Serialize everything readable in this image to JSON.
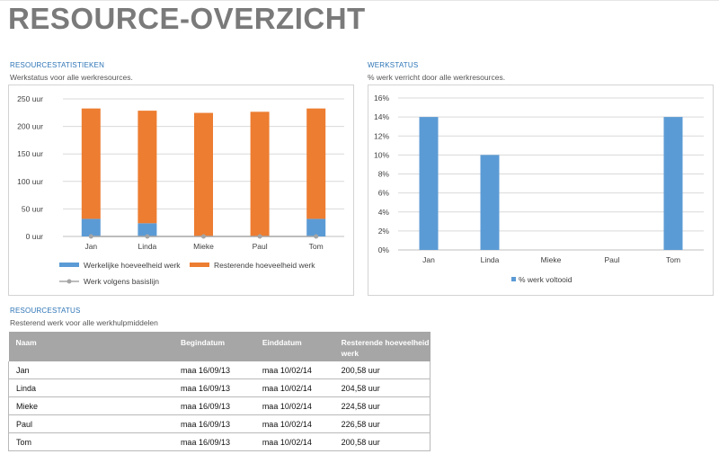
{
  "page": {
    "title": "RESOURCE-OVERZICHT"
  },
  "sections": {
    "stats": {
      "heading": "RESOURCESTATISTIEKEN",
      "subtitle": "Werkstatus voor alle werkresources."
    },
    "workstatus": {
      "heading": "WERKSTATUS",
      "subtitle": "% werk verricht door alle werkresources."
    },
    "resstatus": {
      "heading": "RESOURCESTATUS",
      "subtitle": "Resterend werk voor alle werkhulpmiddelen"
    }
  },
  "chart_data": [
    {
      "type": "bar",
      "stacked": true,
      "categories": [
        "Jan",
        "Linda",
        "Mieke",
        "Paul",
        "Tom"
      ],
      "series": [
        {
          "name": "Werkelijke hoeveelheid werk",
          "values": [
            32,
            24,
            0,
            0,
            32
          ],
          "color": "#5b9bd5"
        },
        {
          "name": "Resterende hoeveelheid werk",
          "values": [
            200.58,
            204.58,
            224.58,
            226.58,
            200.58
          ],
          "color": "#ed7d31"
        },
        {
          "name": "Werk volgens basislijn",
          "type": "line",
          "values": [
            0,
            0,
            0,
            0,
            0
          ],
          "color": "#a5a5a5"
        }
      ],
      "yticks": [
        "0 uur",
        "50 uur",
        "100 uur",
        "150 uur",
        "200 uur",
        "250 uur"
      ],
      "ylim": [
        0,
        250
      ],
      "grid": true,
      "legend_position": "bottom"
    },
    {
      "type": "bar",
      "categories": [
        "Jan",
        "Linda",
        "Mieke",
        "Paul",
        "Tom"
      ],
      "series": [
        {
          "name": "% werk voltooid",
          "values": [
            14,
            10,
            0,
            0,
            14
          ],
          "color": "#5b9bd5"
        }
      ],
      "yticks": [
        "0%",
        "2%",
        "4%",
        "6%",
        "8%",
        "10%",
        "12%",
        "14%",
        "16%"
      ],
      "ylim": [
        0,
        16
      ],
      "grid": true,
      "legend_position": "bottom"
    }
  ],
  "table": {
    "headers": [
      "Naam",
      "Begindatum",
      "Einddatum",
      "Resterende hoeveelheid werk"
    ],
    "rows": [
      [
        "Jan",
        "maa 16/09/13",
        "maa 10/02/14",
        "200,58 uur"
      ],
      [
        "Linda",
        "maa 16/09/13",
        "maa 10/02/14",
        "204,58 uur"
      ],
      [
        "Mieke",
        "maa 16/09/13",
        "maa 10/02/14",
        "224,58 uur"
      ],
      [
        "Paul",
        "maa 16/09/13",
        "maa 10/02/14",
        "226,58 uur"
      ],
      [
        "Tom",
        "maa 16/09/13",
        "maa 10/02/14",
        "200,58 uur"
      ]
    ]
  }
}
